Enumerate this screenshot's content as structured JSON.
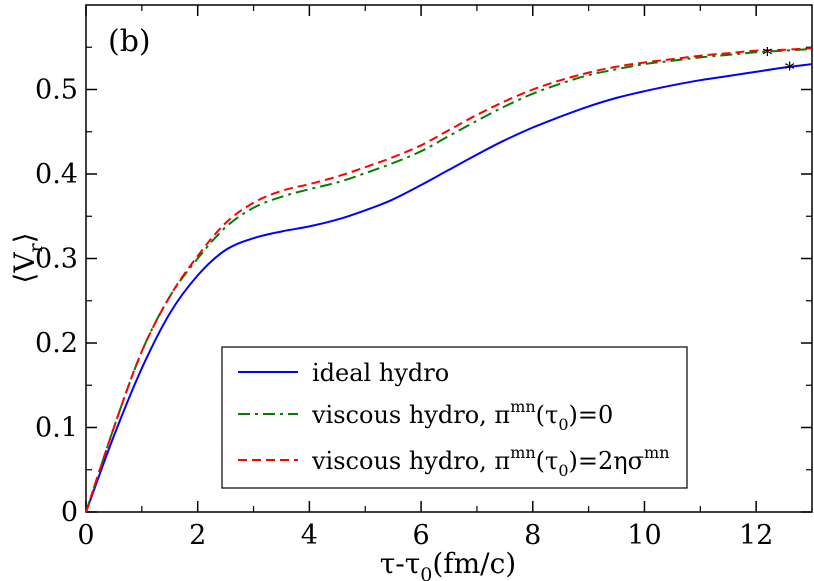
{
  "chart_data": {
    "type": "line",
    "panel_label": "(b)",
    "xlabel_main": "τ-τ",
    "xlabel_sub": "0",
    "xlabel_tail": "(fm/c)",
    "ylabel_main": "⟨V",
    "ylabel_sub": "r",
    "ylabel_tail": "⟩",
    "xlim": [
      0,
      13
    ],
    "ylim": [
      0,
      0.6
    ],
    "x_ticks": [
      0,
      2,
      4,
      6,
      8,
      10,
      12
    ],
    "x_tick_labels": [
      "0",
      "2",
      "4",
      "6",
      "8",
      "10",
      "12"
    ],
    "y_ticks": [
      0,
      0.1,
      0.2,
      0.3,
      0.4,
      0.5
    ],
    "y_tick_labels": [
      "0",
      "0.1",
      "0.2",
      "0.3",
      "0.4",
      "0.5"
    ],
    "legend_position": "bottom-center",
    "series": [
      {
        "name": "ideal hydro",
        "legend_text": "ideal hydro",
        "color": "#0000ff",
        "dash": "solid",
        "x": [
          0,
          0.5,
          1,
          1.5,
          2,
          2.5,
          3,
          3.5,
          4,
          4.5,
          5,
          5.5,
          6,
          6.5,
          7,
          7.5,
          8,
          8.5,
          9,
          9.5,
          10,
          10.5,
          11,
          11.5,
          12,
          12.5,
          13
        ],
        "y": [
          0,
          0.09,
          0.17,
          0.235,
          0.28,
          0.31,
          0.324,
          0.332,
          0.338,
          0.346,
          0.357,
          0.37,
          0.387,
          0.405,
          0.423,
          0.44,
          0.455,
          0.468,
          0.48,
          0.49,
          0.498,
          0.505,
          0.511,
          0.516,
          0.521,
          0.526,
          0.53
        ]
      },
      {
        "name": "viscous hydro, pi(tau0)=0",
        "legend_text": "viscous hydro, π",
        "legend_sup": "mn",
        "legend_tail_pre": "(τ",
        "legend_sub": "0",
        "legend_tail_post": ")=0",
        "color": "#008000",
        "dash": "dashdot",
        "x": [
          0,
          0.5,
          1,
          1.5,
          2,
          2.5,
          3,
          3.5,
          4,
          4.5,
          5,
          5.5,
          6,
          6.5,
          7,
          7.5,
          8,
          8.5,
          9,
          9.5,
          10,
          10.5,
          11,
          11.5,
          12,
          12.5,
          13
        ],
        "y": [
          0,
          0.1,
          0.19,
          0.255,
          0.3,
          0.337,
          0.36,
          0.373,
          0.382,
          0.39,
          0.401,
          0.413,
          0.427,
          0.445,
          0.463,
          0.48,
          0.495,
          0.507,
          0.517,
          0.524,
          0.53,
          0.534,
          0.538,
          0.541,
          0.544,
          0.546,
          0.548
        ]
      },
      {
        "name": "viscous hydro, pi(tau0)=2 eta sigma",
        "legend_text": "viscous hydro, π",
        "legend_sup": "mn",
        "legend_tail_pre": "(τ",
        "legend_sub": "0",
        "legend_tail_post": ")=2ησ",
        "legend_sup2": "mn",
        "color": "#ff0000",
        "dash": "dashed",
        "x": [
          0,
          0.5,
          1,
          1.5,
          2,
          2.5,
          3,
          3.5,
          4,
          4.5,
          5,
          5.5,
          6,
          6.5,
          7,
          7.5,
          8,
          8.5,
          9,
          9.5,
          10,
          10.5,
          11,
          11.5,
          12,
          12.5,
          13
        ],
        "y": [
          0,
          0.1,
          0.19,
          0.255,
          0.303,
          0.342,
          0.366,
          0.38,
          0.388,
          0.397,
          0.408,
          0.42,
          0.434,
          0.452,
          0.47,
          0.486,
          0.5,
          0.511,
          0.52,
          0.527,
          0.532,
          0.536,
          0.54,
          0.543,
          0.546,
          0.547,
          0.549
        ]
      }
    ],
    "markers": [
      {
        "series": "viscous hydro",
        "symbol": "*",
        "x": 12.2,
        "y": 0.545
      },
      {
        "series": "ideal hydro",
        "symbol": "*",
        "x": 12.6,
        "y": 0.528
      }
    ]
  }
}
